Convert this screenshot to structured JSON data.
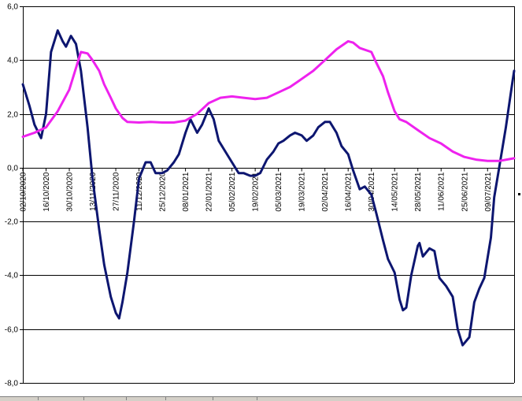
{
  "chart_data": {
    "type": "line",
    "title": "",
    "xlabel": "",
    "ylabel": "",
    "ylim": [
      -8,
      6
    ],
    "yticks": [
      6,
      4,
      2,
      0,
      -2,
      -4,
      -6,
      -8
    ],
    "ytick_labels": [
      "6,0",
      "4,0",
      "2,0",
      "0,0",
      "-2,0",
      "-4,0",
      "-6,0",
      "-8,0"
    ],
    "grid": "horizontal",
    "legend": "none",
    "x_start": "02/10/2020",
    "x_end": "25/07/2021",
    "x_tick_labels": [
      "02/10/2020",
      "16/10/2020",
      "30/10/2020",
      "13/11/2020",
      "27/11/2020",
      "11/12/2020",
      "25/12/2020",
      "08/01/2021",
      "22/01/2021",
      "05/02/2021",
      "19/02/2021",
      "05/03/2021",
      "19/03/2021",
      "02/04/2021",
      "16/04/2021",
      "30/04/2021",
      "14/05/2021",
      "28/05/2021",
      "11/06/2021",
      "25/06/2021",
      "09/07/2021"
    ],
    "series": [
      {
        "color": "#0d1670",
        "points": [
          [
            "02/10/2020",
            3.1
          ],
          [
            "06/10/2020",
            2.3
          ],
          [
            "09/10/2020",
            1.6
          ],
          [
            "13/10/2020",
            1.1
          ],
          [
            "16/10/2020",
            2.0
          ],
          [
            "19/10/2020",
            4.3
          ],
          [
            "23/10/2020",
            5.1
          ],
          [
            "26/10/2020",
            4.7
          ],
          [
            "28/10/2020",
            4.5
          ],
          [
            "31/10/2020",
            4.9
          ],
          [
            "03/11/2020",
            4.6
          ],
          [
            "06/11/2020",
            3.6
          ],
          [
            "10/11/2020",
            1.5
          ],
          [
            "13/11/2020",
            -0.4
          ],
          [
            "17/11/2020",
            -2.3
          ],
          [
            "20/11/2020",
            -3.6
          ],
          [
            "24/11/2020",
            -4.8
          ],
          [
            "27/11/2020",
            -5.4
          ],
          [
            "29/11/2020",
            -5.6
          ],
          [
            "01/12/2020",
            -5.0
          ],
          [
            "04/12/2020",
            -3.9
          ],
          [
            "08/12/2020",
            -2.0
          ],
          [
            "11/12/2020",
            -0.4
          ],
          [
            "15/12/2020",
            0.2
          ],
          [
            "18/12/2020",
            0.2
          ],
          [
            "21/12/2020",
            -0.2
          ],
          [
            "25/12/2020",
            -0.2
          ],
          [
            "28/12/2020",
            -0.1
          ],
          [
            "01/01/2021",
            0.2
          ],
          [
            "04/01/2021",
            0.5
          ],
          [
            "08/01/2021",
            1.3
          ],
          [
            "11/01/2021",
            1.8
          ],
          [
            "15/01/2021",
            1.3
          ],
          [
            "18/01/2021",
            1.6
          ],
          [
            "22/01/2021",
            2.2
          ],
          [
            "25/01/2021",
            1.8
          ],
          [
            "28/01/2021",
            1.0
          ],
          [
            "01/02/2021",
            0.6
          ],
          [
            "05/02/2021",
            0.2
          ],
          [
            "09/02/2021",
            -0.2
          ],
          [
            "12/02/2021",
            -0.2
          ],
          [
            "16/02/2021",
            -0.3
          ],
          [
            "19/02/2021",
            -0.3
          ],
          [
            "22/02/2021",
            -0.2
          ],
          [
            "26/02/2021",
            0.3
          ],
          [
            "02/03/2021",
            0.6
          ],
          [
            "05/03/2021",
            0.9
          ],
          [
            "08/03/2021",
            1.0
          ],
          [
            "12/03/2021",
            1.2
          ],
          [
            "15/03/2021",
            1.3
          ],
          [
            "19/03/2021",
            1.2
          ],
          [
            "22/03/2021",
            1.0
          ],
          [
            "26/03/2021",
            1.2
          ],
          [
            "29/03/2021",
            1.5
          ],
          [
            "02/04/2021",
            1.7
          ],
          [
            "05/04/2021",
            1.7
          ],
          [
            "09/04/2021",
            1.3
          ],
          [
            "12/04/2021",
            0.8
          ],
          [
            "16/04/2021",
            0.5
          ],
          [
            "19/04/2021",
            -0.1
          ],
          [
            "23/04/2021",
            -0.8
          ],
          [
            "26/04/2021",
            -0.7
          ],
          [
            "30/04/2021",
            -1.0
          ],
          [
            "03/05/2021",
            -1.7
          ],
          [
            "07/05/2021",
            -2.7
          ],
          [
            "10/05/2021",
            -3.4
          ],
          [
            "14/05/2021",
            -3.9
          ],
          [
            "17/05/2021",
            -4.9
          ],
          [
            "19/05/2021",
            -5.3
          ],
          [
            "21/05/2021",
            -5.2
          ],
          [
            "24/05/2021",
            -4.0
          ],
          [
            "28/05/2021",
            -2.9
          ],
          [
            "29/05/2021",
            -2.8
          ],
          [
            "31/05/2021",
            -3.3
          ],
          [
            "04/06/2021",
            -3.0
          ],
          [
            "07/06/2021",
            -3.1
          ],
          [
            "10/06/2021",
            -4.1
          ],
          [
            "14/06/2021",
            -4.4
          ],
          [
            "18/06/2021",
            -4.8
          ],
          [
            "21/06/2021",
            -6.0
          ],
          [
            "24/06/2021",
            -6.6
          ],
          [
            "28/06/2021",
            -6.3
          ],
          [
            "01/07/2021",
            -5.0
          ],
          [
            "04/07/2021",
            -4.5
          ],
          [
            "07/07/2021",
            -4.1
          ],
          [
            "11/07/2021",
            -2.6
          ],
          [
            "13/07/2021",
            -1.1
          ],
          [
            "16/07/2021",
            0.0
          ],
          [
            "20/07/2021",
            1.5
          ],
          [
            "24/07/2021",
            3.2
          ],
          [
            "25/07/2021",
            3.6
          ]
        ]
      },
      {
        "color": "#ee22ee",
        "points": [
          [
            "02/10/2020",
            1.15
          ],
          [
            "09/10/2020",
            1.3
          ],
          [
            "16/10/2020",
            1.5
          ],
          [
            "23/10/2020",
            2.1
          ],
          [
            "30/10/2020",
            2.9
          ],
          [
            "06/11/2020",
            4.3
          ],
          [
            "10/11/2020",
            4.25
          ],
          [
            "13/11/2020",
            4.0
          ],
          [
            "17/11/2020",
            3.6
          ],
          [
            "20/11/2020",
            3.1
          ],
          [
            "24/11/2020",
            2.6
          ],
          [
            "27/11/2020",
            2.2
          ],
          [
            "01/12/2020",
            1.85
          ],
          [
            "04/12/2020",
            1.7
          ],
          [
            "11/12/2020",
            1.68
          ],
          [
            "18/12/2020",
            1.7
          ],
          [
            "25/12/2020",
            1.68
          ],
          [
            "01/01/2021",
            1.68
          ],
          [
            "08/01/2021",
            1.75
          ],
          [
            "15/01/2021",
            2.0
          ],
          [
            "22/01/2021",
            2.4
          ],
          [
            "29/01/2021",
            2.6
          ],
          [
            "05/02/2021",
            2.65
          ],
          [
            "12/02/2021",
            2.6
          ],
          [
            "19/02/2021",
            2.55
          ],
          [
            "26/02/2021",
            2.6
          ],
          [
            "05/03/2021",
            2.8
          ],
          [
            "12/03/2021",
            3.0
          ],
          [
            "19/03/2021",
            3.3
          ],
          [
            "26/03/2021",
            3.6
          ],
          [
            "02/04/2021",
            4.0
          ],
          [
            "09/04/2021",
            4.4
          ],
          [
            "16/04/2021",
            4.7
          ],
          [
            "19/04/2021",
            4.65
          ],
          [
            "23/04/2021",
            4.45
          ],
          [
            "30/04/2021",
            4.3
          ],
          [
            "03/05/2021",
            3.9
          ],
          [
            "07/05/2021",
            3.4
          ],
          [
            "10/05/2021",
            2.8
          ],
          [
            "14/05/2021",
            2.1
          ],
          [
            "17/05/2021",
            1.8
          ],
          [
            "21/05/2021",
            1.7
          ],
          [
            "28/05/2021",
            1.4
          ],
          [
            "04/06/2021",
            1.1
          ],
          [
            "11/06/2021",
            0.9
          ],
          [
            "18/06/2021",
            0.6
          ],
          [
            "25/06/2021",
            0.4
          ],
          [
            "02/07/2021",
            0.3
          ],
          [
            "09/07/2021",
            0.25
          ],
          [
            "16/07/2021",
            0.25
          ],
          [
            "25/07/2021",
            0.35
          ]
        ]
      }
    ]
  },
  "sheet_tabs": [
    {
      "label": ""
    },
    {
      "label": ""
    },
    {
      "label": ""
    },
    {
      "label": ""
    },
    {
      "label": ""
    },
    {
      "label": ""
    }
  ]
}
